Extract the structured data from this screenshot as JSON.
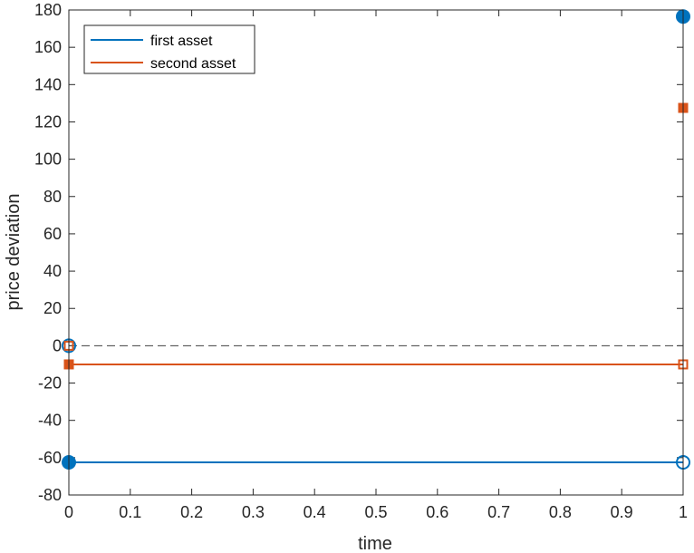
{
  "chart_data": {
    "type": "line",
    "title": "",
    "xlabel": "time",
    "ylabel": "price deviation",
    "xlim": [
      0,
      1
    ],
    "ylim": [
      -80,
      180
    ],
    "xticks": [
      0,
      0.1,
      0.2,
      0.3,
      0.4,
      0.5,
      0.6,
      0.7,
      0.8,
      0.9,
      1
    ],
    "xtick_labels": [
      "0",
      "0.1",
      "0.2",
      "0.3",
      "0.4",
      "0.5",
      "0.6",
      "0.7",
      "0.8",
      "0.9",
      "1"
    ],
    "yticks": [
      -80,
      -60,
      -40,
      -20,
      0,
      20,
      40,
      60,
      80,
      100,
      120,
      140,
      160,
      180
    ],
    "ytick_labels": [
      "-80",
      "-60",
      "-40",
      "-20",
      "0",
      "20",
      "40",
      "60",
      "80",
      "100",
      "120",
      "140",
      "160",
      "180"
    ],
    "grid": false,
    "legend_position": "top-left",
    "reference_line": {
      "y": 0,
      "style": "dashed",
      "color": "#404040"
    },
    "series": [
      {
        "name": "first asset",
        "color": "#0072BD",
        "x": [
          0,
          1
        ],
        "y": [
          -62.5,
          -62.5
        ],
        "marker": "circle",
        "points": [
          {
            "x": 0,
            "y": 0,
            "filled": false
          },
          {
            "x": 0,
            "y": -62.5,
            "filled": true
          },
          {
            "x": 1,
            "y": -62.5,
            "filled": false
          },
          {
            "x": 1,
            "y": 176.5,
            "filled": true
          }
        ]
      },
      {
        "name": "second asset",
        "color": "#D95319",
        "x": [
          0,
          1
        ],
        "y": [
          -10,
          -10
        ],
        "marker": "square",
        "points": [
          {
            "x": 0,
            "y": 0,
            "filled": false
          },
          {
            "x": 0,
            "y": -10,
            "filled": true
          },
          {
            "x": 1,
            "y": -10,
            "filled": false
          },
          {
            "x": 1,
            "y": 127.5,
            "filled": true
          }
        ]
      }
    ]
  }
}
